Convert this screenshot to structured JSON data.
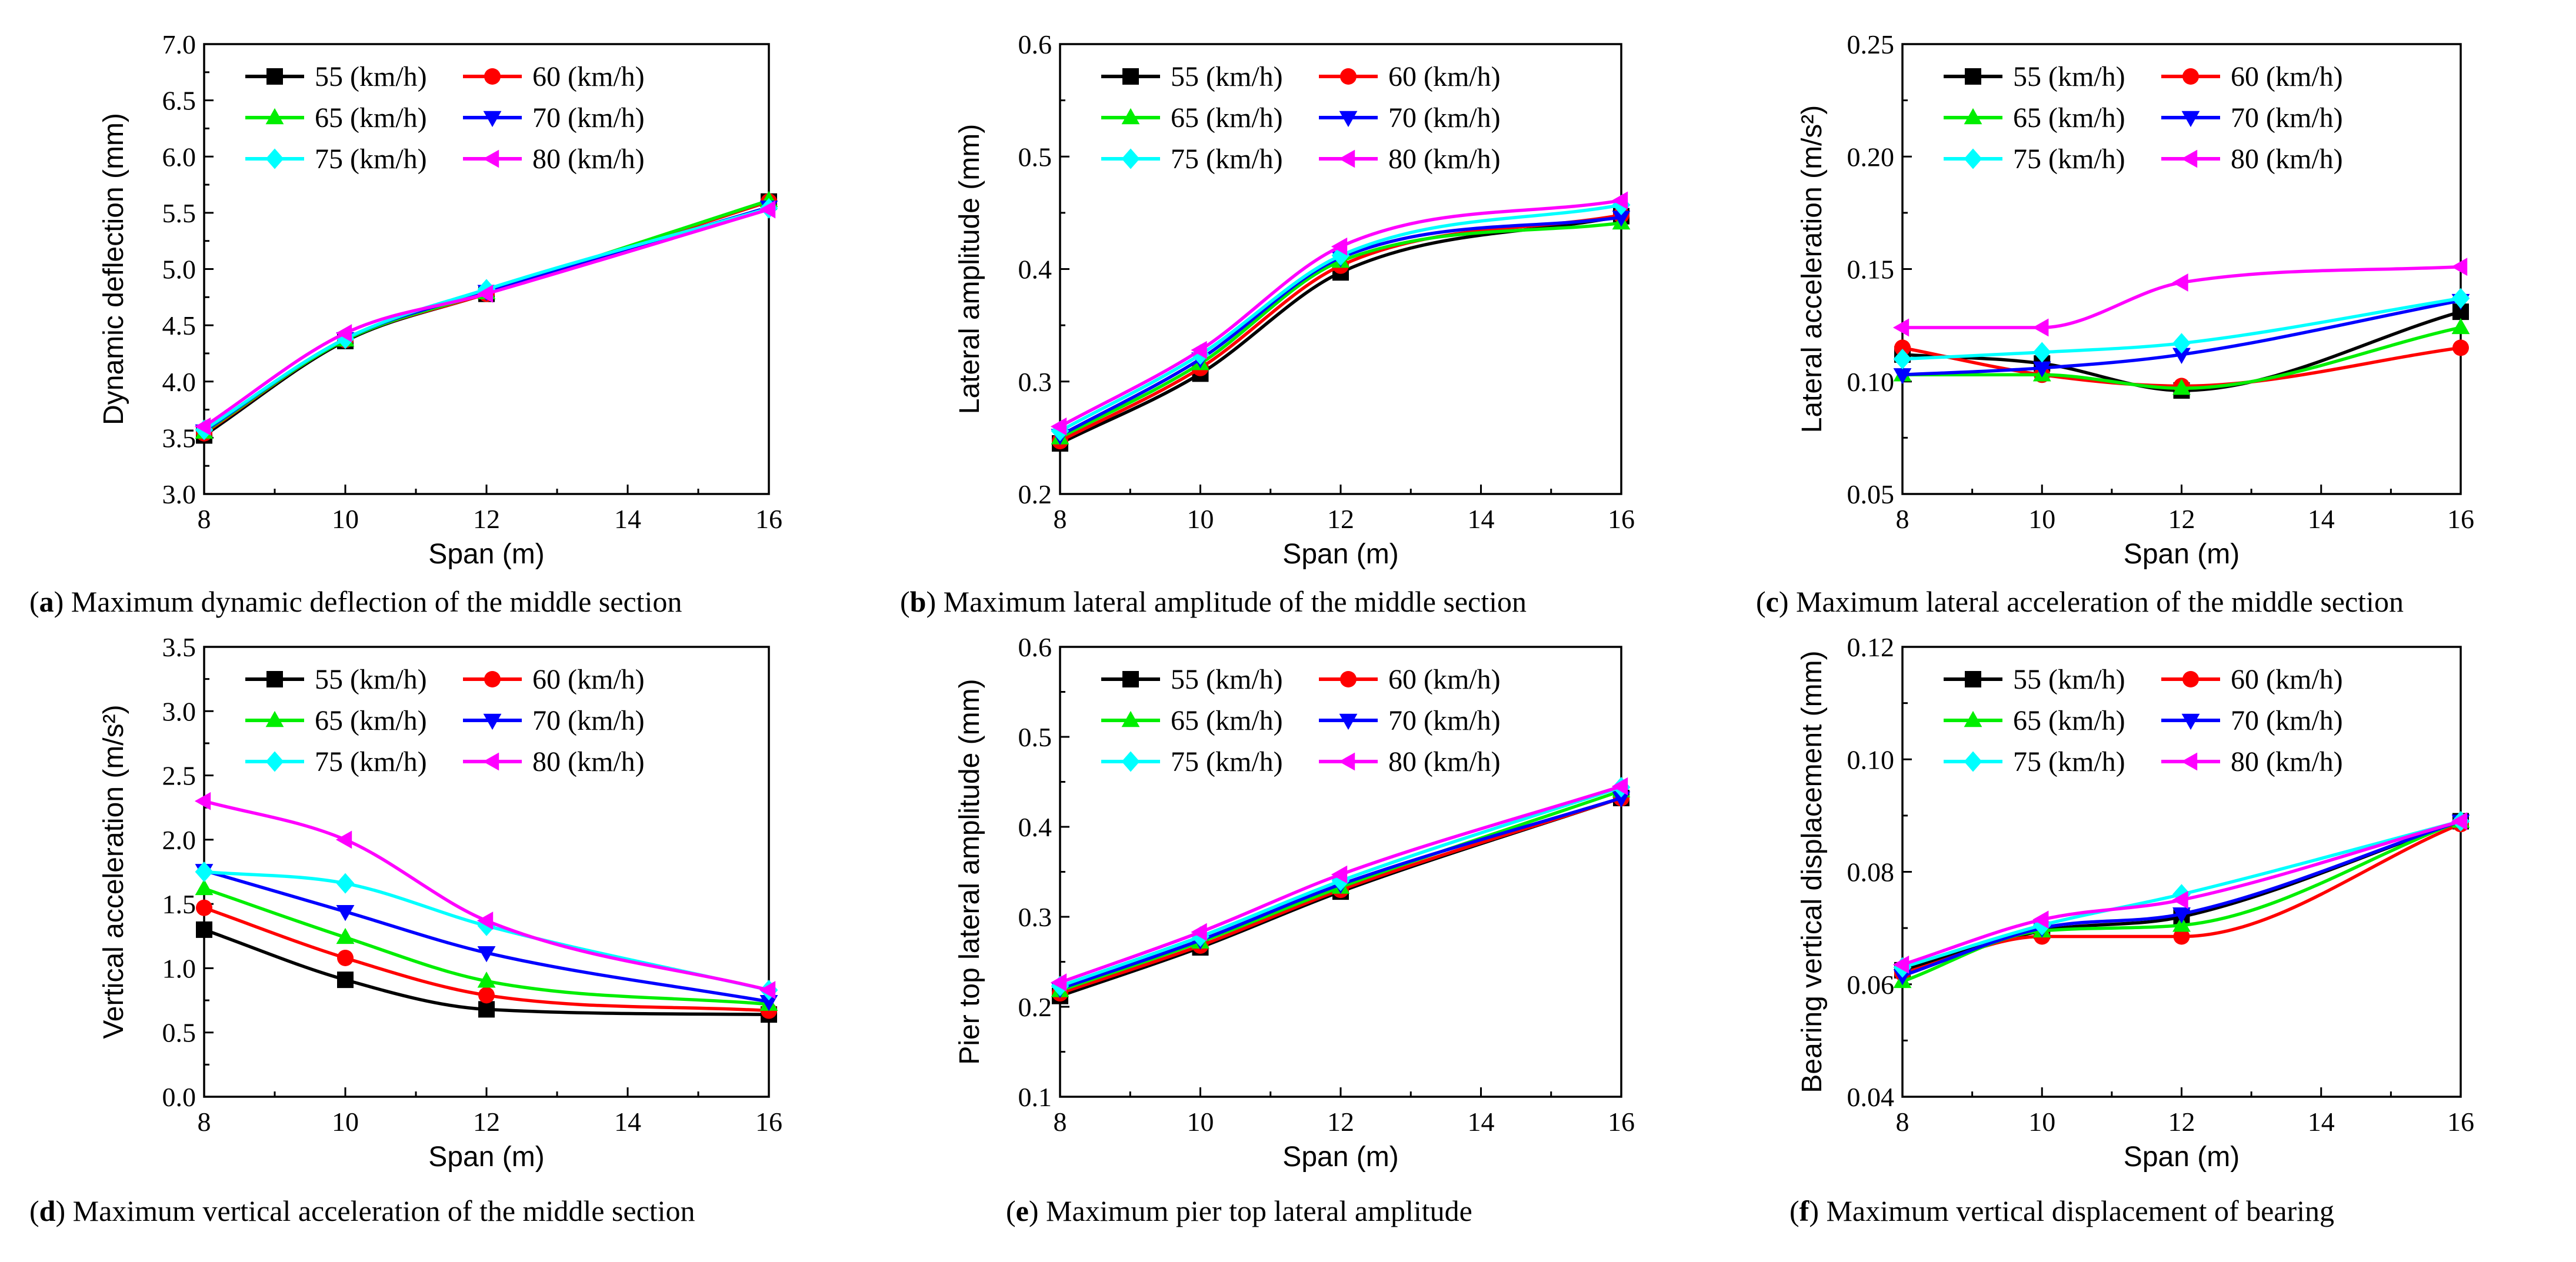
{
  "chart_data": [
    {
      "type": "line",
      "panel": "a",
      "caption": "Maximum dynamic deflection of the middle section",
      "xlabel": "Span (m)",
      "ylabel": "Dynamic deflection (mm)",
      "x": [
        8,
        10,
        12,
        16
      ],
      "xlim": [
        8,
        16
      ],
      "xticks": [
        "8",
        "10",
        "12",
        "14",
        "16"
      ],
      "ylim": [
        3.0,
        7.0
      ],
      "yticks": [
        "3.0",
        "3.5",
        "4.0",
        "4.5",
        "5.0",
        "5.5",
        "6.0",
        "6.5",
        "7.0"
      ],
      "series": [
        {
          "name": "55 (km/h)",
          "values": [
            3.52,
            4.36,
            4.78,
            5.6
          ]
        },
        {
          "name": "60 (km/h)",
          "values": [
            3.54,
            4.37,
            4.78,
            5.6
          ]
        },
        {
          "name": "65 (km/h)",
          "values": [
            3.55,
            4.37,
            4.79,
            5.61
          ]
        },
        {
          "name": "70 (km/h)",
          "values": [
            3.56,
            4.38,
            4.8,
            5.55
          ]
        },
        {
          "name": "75 (km/h)",
          "values": [
            3.57,
            4.38,
            4.82,
            5.54
          ]
        },
        {
          "name": "80 (km/h)",
          "values": [
            3.6,
            4.43,
            4.78,
            5.53
          ]
        }
      ]
    },
    {
      "type": "line",
      "panel": "b",
      "caption": "Maximum lateral amplitude of the middle section",
      "xlabel": "Span (m)",
      "ylabel": "Lateral amplitude (mm)",
      "x": [
        8,
        10,
        12,
        16
      ],
      "xlim": [
        8,
        16
      ],
      "xticks": [
        "8",
        "10",
        "12",
        "14",
        "16"
      ],
      "ylim": [
        0.2,
        0.6
      ],
      "yticks": [
        "0.2",
        "0.3",
        "0.4",
        "0.5",
        "0.6"
      ],
      "series": [
        {
          "name": "55 (km/h)",
          "values": [
            0.245,
            0.307,
            0.397,
            0.447
          ]
        },
        {
          "name": "60 (km/h)",
          "values": [
            0.247,
            0.312,
            0.403,
            0.448
          ]
        },
        {
          "name": "65 (km/h)",
          "values": [
            0.25,
            0.316,
            0.407,
            0.441
          ]
        },
        {
          "name": "70 (km/h)",
          "values": [
            0.252,
            0.32,
            0.41,
            0.446
          ]
        },
        {
          "name": "75 (km/h)",
          "values": [
            0.256,
            0.324,
            0.412,
            0.457
          ]
        },
        {
          "name": "80 (km/h)",
          "values": [
            0.26,
            0.328,
            0.42,
            0.461
          ]
        }
      ]
    },
    {
      "type": "line",
      "panel": "c",
      "caption": "Maximum lateral acceleration of the middle section",
      "xlabel": "Span (m)",
      "ylabel": "Lateral acceleration (m/s²)",
      "x": [
        8,
        10,
        12,
        16
      ],
      "xlim": [
        8,
        16
      ],
      "xticks": [
        "8",
        "10",
        "12",
        "14",
        "16"
      ],
      "ylim": [
        0.05,
        0.25
      ],
      "yticks": [
        "0.05",
        "0.10",
        "0.15",
        "0.20",
        "0.25"
      ],
      "series": [
        {
          "name": "55 (km/h)",
          "values": [
            0.112,
            0.108,
            0.096,
            0.131
          ]
        },
        {
          "name": "60 (km/h)",
          "values": [
            0.115,
            0.103,
            0.098,
            0.115
          ]
        },
        {
          "name": "65 (km/h)",
          "values": [
            0.103,
            0.103,
            0.097,
            0.124
          ]
        },
        {
          "name": "70 (km/h)",
          "values": [
            0.103,
            0.106,
            0.112,
            0.136
          ]
        },
        {
          "name": "75 (km/h)",
          "values": [
            0.11,
            0.113,
            0.117,
            0.137
          ]
        },
        {
          "name": "80 (km/h)",
          "values": [
            0.124,
            0.124,
            0.144,
            0.151
          ]
        }
      ]
    },
    {
      "type": "line",
      "panel": "d",
      "caption": "Maximum vertical acceleration of the middle section",
      "xlabel": "Span (m)",
      "ylabel": "Vertical acceleration (m/s²)",
      "x": [
        8,
        10,
        12,
        16
      ],
      "xlim": [
        8,
        16
      ],
      "xticks": [
        "8",
        "10",
        "12",
        "14",
        "16"
      ],
      "ylim": [
        0.0,
        3.5
      ],
      "yticks": [
        "0.0",
        "0.5",
        "1.0",
        "1.5",
        "2.0",
        "2.5",
        "3.0",
        "3.5"
      ],
      "series": [
        {
          "name": "55 (km/h)",
          "values": [
            1.3,
            0.91,
            0.68,
            0.64
          ]
        },
        {
          "name": "60 (km/h)",
          "values": [
            1.47,
            1.08,
            0.79,
            0.67
          ]
        },
        {
          "name": "65 (km/h)",
          "values": [
            1.62,
            1.24,
            0.9,
            0.72
          ]
        },
        {
          "name": "70 (km/h)",
          "values": [
            1.76,
            1.44,
            1.12,
            0.74
          ]
        },
        {
          "name": "75 (km/h)",
          "values": [
            1.75,
            1.66,
            1.33,
            0.83
          ]
        },
        {
          "name": "80 (km/h)",
          "values": [
            2.3,
            2.0,
            1.37,
            0.83
          ]
        }
      ]
    },
    {
      "type": "line",
      "panel": "e",
      "caption": "Maximum pier top lateral amplitude",
      "xlabel": "Span (m)",
      "ylabel": "Pier top lateral amplitude (mm)",
      "x": [
        8,
        10,
        12,
        16
      ],
      "xlim": [
        8,
        16
      ],
      "xticks": [
        "8",
        "10",
        "12",
        "14",
        "16"
      ],
      "ylim": [
        0.1,
        0.6
      ],
      "yticks": [
        "0.1",
        "0.2",
        "0.3",
        "0.4",
        "0.5",
        "0.6"
      ],
      "series": [
        {
          "name": "55 (km/h)",
          "values": [
            0.212,
            0.266,
            0.328,
            0.432
          ]
        },
        {
          "name": "60 (km/h)",
          "values": [
            0.215,
            0.268,
            0.33,
            0.432
          ]
        },
        {
          "name": "65 (km/h)",
          "values": [
            0.218,
            0.272,
            0.333,
            0.44
          ]
        },
        {
          "name": "70 (km/h)",
          "values": [
            0.22,
            0.274,
            0.336,
            0.432
          ]
        },
        {
          "name": "75 (km/h)",
          "values": [
            0.223,
            0.278,
            0.34,
            0.444
          ]
        },
        {
          "name": "80 (km/h)",
          "values": [
            0.227,
            0.283,
            0.347,
            0.445
          ]
        }
      ]
    },
    {
      "type": "line",
      "panel": "f",
      "caption": "Maximum vertical displacement of bearing",
      "xlabel": "Span (m)",
      "ylabel": "Bearing vertical displacement (mm)",
      "x": [
        8,
        10,
        12,
        16
      ],
      "xlim": [
        8,
        16
      ],
      "xticks": [
        "8",
        "10",
        "12",
        "14",
        "16"
      ],
      "ylim": [
        0.04,
        0.12
      ],
      "yticks": [
        "0.04",
        "0.06",
        "0.08",
        "0.10",
        "0.12"
      ],
      "series": [
        {
          "name": "55 (km/h)",
          "values": [
            0.0625,
            0.0695,
            0.072,
            0.089
          ]
        },
        {
          "name": "60 (km/h)",
          "values": [
            0.062,
            0.0685,
            0.0685,
            0.0885
          ]
        },
        {
          "name": "65 (km/h)",
          "values": [
            0.0605,
            0.0695,
            0.0705,
            0.089
          ]
        },
        {
          "name": "70 (km/h)",
          "values": [
            0.0615,
            0.07,
            0.0725,
            0.089
          ]
        },
        {
          "name": "75 (km/h)",
          "values": [
            0.063,
            0.0705,
            0.076,
            0.089
          ]
        },
        {
          "name": "80 (km/h)",
          "values": [
            0.0635,
            0.0715,
            0.075,
            0.089
          ]
        }
      ]
    }
  ],
  "series_styles": [
    {
      "color": "#000000",
      "marker": "square"
    },
    {
      "color": "#ff0000",
      "marker": "circle"
    },
    {
      "color": "#00ee00",
      "marker": "triangle-up"
    },
    {
      "color": "#0000ff",
      "marker": "triangle-down"
    },
    {
      "color": "#00ffff",
      "marker": "diamond"
    },
    {
      "color": "#ff00ff",
      "marker": "triangle-left"
    }
  ],
  "panel_labels": [
    "(a)",
    "(b)",
    "(c)",
    "(d)",
    "(e)",
    "(f)"
  ]
}
